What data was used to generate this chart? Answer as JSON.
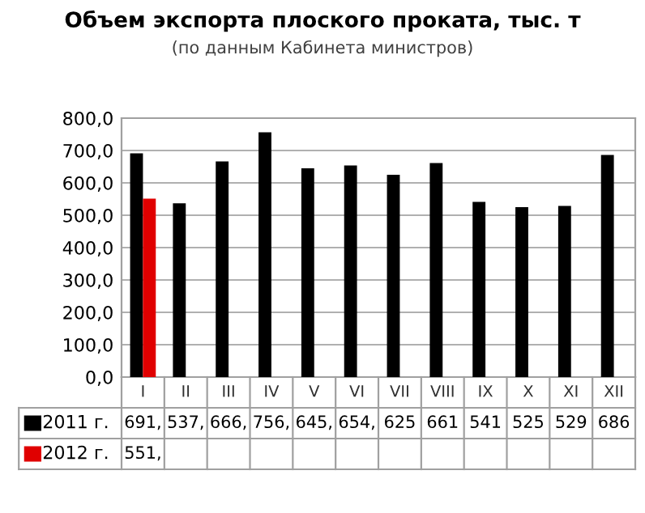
{
  "chart_data": {
    "type": "bar",
    "title": "Объем экспорта плоского проката, тыс. т",
    "subtitle": "(по данным Кабинета министров)",
    "categories": [
      "I",
      "II",
      "III",
      "IV",
      "V",
      "VI",
      "VII",
      "VIII",
      "IX",
      "X",
      "XI",
      "XII"
    ],
    "series": [
      {
        "name": "2011 г.",
        "color": "#000000",
        "values": [
          691,
          537,
          666,
          756,
          645,
          654,
          625,
          661,
          541,
          525,
          529,
          686
        ],
        "value_labels": [
          "691,",
          "537,",
          "666,",
          "756,",
          "645,",
          "654,",
          "625",
          "661",
          "541",
          "525",
          "529",
          "686"
        ]
      },
      {
        "name": "2012 г.",
        "color": "#e00000",
        "values": [
          551,
          null,
          null,
          null,
          null,
          null,
          null,
          null,
          null,
          null,
          null,
          null
        ],
        "value_labels": [
          "551,",
          null,
          null,
          null,
          null,
          null,
          null,
          null,
          null,
          null,
          null,
          null
        ]
      }
    ],
    "ylim": [
      0,
      800
    ],
    "yticks": [
      {
        "value": 0,
        "label": "0,0"
      },
      {
        "value": 100,
        "label": "100,0"
      },
      {
        "value": 200,
        "label": "200,0"
      },
      {
        "value": 300,
        "label": "300,0"
      },
      {
        "value": 400,
        "label": "400,0"
      },
      {
        "value": 500,
        "label": "500,0"
      },
      {
        "value": 600,
        "label": "600,0"
      },
      {
        "value": 700,
        "label": "700,0"
      },
      {
        "value": 800,
        "label": "800,0"
      }
    ],
    "grid": "y",
    "legend": "bottom left"
  }
}
